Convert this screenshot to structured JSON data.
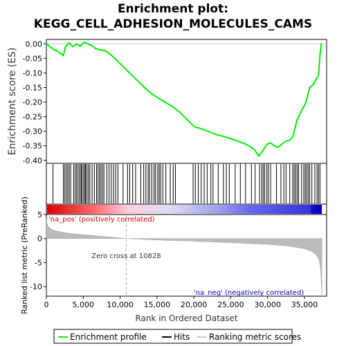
{
  "title_line1": "Enrichment plot:",
  "title_line2": "KEGG_CELL_ADHESION_MOLECULES_CAMS",
  "colors": {
    "enrichment_line": "#00ee00",
    "hits": "#000000",
    "metric_fill": "#bbbbbb",
    "pos_label": "#cc0000",
    "neg_label": "#0000cc",
    "zero_cross_line": "#aaaaaa"
  },
  "chart_data": [
    {
      "type": "line",
      "name": "enrichment-profile",
      "ylabel": "Enrichment score (ES)",
      "xlim": [
        0,
        38000
      ],
      "ylim": [
        -0.41,
        0.015
      ],
      "yticks": [
        0.0,
        -0.05,
        -0.1,
        -0.15,
        -0.2,
        -0.25,
        -0.3,
        -0.35,
        -0.4
      ],
      "ytick_labels": [
        "0.00",
        "-0.05",
        "-0.10",
        "-0.15",
        "-0.20",
        "-0.25",
        "-0.30",
        "-0.35",
        "-0.40"
      ],
      "grid": false,
      "x": [
        0,
        1000,
        1500,
        2300,
        2600,
        3100,
        3600,
        4100,
        4600,
        5100,
        5600,
        6100,
        6600,
        7100,
        7600,
        8100,
        9100,
        10100,
        11100,
        12100,
        13100,
        14100,
        15100,
        16100,
        17100,
        18100,
        19100,
        20100,
        21100,
        22100,
        23100,
        24100,
        25100,
        26100,
        27100,
        28100,
        28800,
        29400,
        29900,
        30400,
        30900,
        31400,
        31900,
        32400,
        32900,
        33400,
        33700,
        34000,
        34400,
        34800,
        35200,
        35700,
        36200,
        36600,
        36900,
        37100,
        37300
      ],
      "y": [
        0.0,
        -0.02,
        -0.025,
        -0.04,
        -0.01,
        0.003,
        -0.01,
        0.0,
        -0.008,
        0.005,
        0.0,
        -0.005,
        -0.015,
        -0.02,
        -0.022,
        -0.025,
        -0.045,
        -0.07,
        -0.095,
        -0.12,
        -0.145,
        -0.168,
        -0.185,
        -0.2,
        -0.215,
        -0.235,
        -0.26,
        -0.285,
        -0.292,
        -0.302,
        -0.312,
        -0.318,
        -0.326,
        -0.335,
        -0.345,
        -0.36,
        -0.385,
        -0.365,
        -0.345,
        -0.34,
        -0.35,
        -0.355,
        -0.345,
        -0.335,
        -0.332,
        -0.32,
        -0.29,
        -0.26,
        -0.24,
        -0.22,
        -0.2,
        -0.15,
        -0.14,
        -0.12,
        -0.11,
        -0.04,
        0.003
      ]
    },
    {
      "type": "scatter",
      "name": "hits",
      "x": [
        900,
        2300,
        2500,
        2700,
        2900,
        3100,
        3300,
        3700,
        3900,
        4100,
        4300,
        4500,
        4700,
        4800,
        5000,
        5200,
        5300,
        5500,
        5700,
        5900,
        6200,
        6500,
        6800,
        7000,
        7200,
        7400,
        7600,
        7800,
        8200,
        8500,
        8800,
        9100,
        9400,
        9700,
        10400,
        11000,
        11300,
        11700,
        12100,
        12800,
        13200,
        13500,
        13800,
        14000,
        14300,
        14600,
        14800,
        15100,
        15300,
        15500,
        15800,
        16200,
        16800,
        17200,
        17500,
        19900,
        20200,
        20600,
        21000,
        21400,
        21800,
        22300,
        22600,
        23300,
        24000,
        24400,
        24800,
        25600,
        26300,
        27000,
        27800,
        28300,
        28900,
        29200,
        29400,
        29600,
        29900,
        30100,
        30400,
        31200,
        31800,
        32200,
        32500,
        33000,
        33400,
        33600,
        33800,
        34000,
        34200,
        34600,
        34900,
        35100,
        35300,
        35500,
        35700,
        36000,
        36400,
        36700,
        36900,
        37100
      ]
    },
    {
      "type": "area",
      "name": "ranked-list-metric",
      "xlabel": "Rank in Ordered Dataset",
      "ylabel": "Ranked list metric (PreRanked)",
      "xlim": [
        0,
        38000
      ],
      "ylim": [
        -12,
        5
      ],
      "yticks": [
        5,
        0,
        -5,
        -10
      ],
      "xticks": [
        0,
        5000,
        10000,
        15000,
        20000,
        25000,
        30000,
        35000
      ],
      "xtick_labels": [
        "0",
        "5,000",
        "10,000",
        "15,000",
        "20,000",
        "25,000",
        "30,000",
        "35,000"
      ],
      "x": [
        0,
        100,
        300,
        700,
        1500,
        3000,
        5000,
        8000,
        10828,
        15000,
        20000,
        25000,
        30000,
        33000,
        35000,
        36000,
        36600,
        37000,
        37200,
        37350
      ],
      "y": [
        4.0,
        3.0,
        2.4,
        1.9,
        1.5,
        1.1,
        0.8,
        0.4,
        0.0,
        -0.3,
        -0.55,
        -0.85,
        -1.2,
        -1.6,
        -2.1,
        -2.7,
        -3.4,
        -4.5,
        -6.5,
        -11.8
      ]
    }
  ],
  "annotations": {
    "zero_cross_label": "Zero cross at 10828",
    "zero_cross_value": 10828,
    "pos_label": "'na_pos' (positively correlated)",
    "neg_label": "'na_neg' (negatively correlated)"
  },
  "legend": {
    "placement": "bottom",
    "items": [
      {
        "label": "Enrichment profile",
        "color": "#00ee00"
      },
      {
        "label": "Hits",
        "color": "#000000"
      },
      {
        "label": "Ranking metric scores",
        "color": "#cccccc"
      }
    ]
  }
}
